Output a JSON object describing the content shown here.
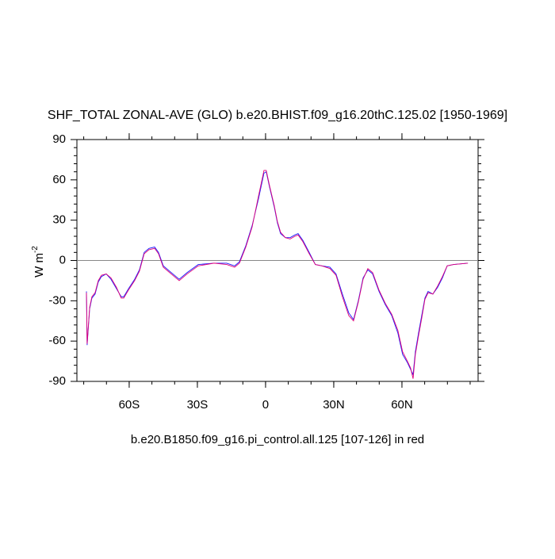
{
  "chart_data": {
    "type": "line",
    "title": "SHF_TOTAL ZONAL-AVE (GLO) b.e20.BHIST.f09_g16.20thC.125.02 [1950-1969]",
    "y_label": "W m",
    "y_label_exponent": "-2",
    "footnote": "b.e20.B1850.f09_g16.pi_control.all.125 [107-126] in red",
    "x": [
      -78.8,
      -78.5,
      -77.4,
      -76.4,
      -75.0,
      -73.6,
      -72.2,
      -70.1,
      -68.0,
      -65.6,
      -63.5,
      -62.4,
      -60.3,
      -57.6,
      -55.5,
      -53.4,
      -51.3,
      -48.8,
      -47.1,
      -45.0,
      -42.2,
      -38.0,
      -34.5,
      -29.6,
      -22.7,
      -17.1,
      -13.6,
      -11.5,
      -8.7,
      -5.9,
      -3.1,
      -0.7,
      0.3,
      1.7,
      3.8,
      5.2,
      6.6,
      8.7,
      10.8,
      12.9,
      14.3,
      16.4,
      19.2,
      21.9,
      24.8,
      28.3,
      31.0,
      33.8,
      36.6,
      38.7,
      40.8,
      42.9,
      45.0,
      47.1,
      49.9,
      52.7,
      55.5,
      58.2,
      60.3,
      62.4,
      63.8,
      64.9,
      65.9,
      67.3,
      68.7,
      70.1,
      71.5,
      73.6,
      75.7,
      77.8,
      79.9,
      82.7,
      89.0
    ],
    "series": [
      {
        "name": "b.e20.BHIST.f09_g16.20thC.125.02",
        "color": "#1a1aff",
        "values": [
          -23,
          -63,
          -36,
          -28,
          -25,
          -16,
          -12,
          -10,
          -14,
          -21,
          -27,
          -27,
          -21,
          -14,
          -7,
          6,
          9,
          10,
          6,
          -4,
          -8,
          -14,
          -9,
          -3,
          -2,
          -2,
          -4,
          -1,
          11,
          26,
          46,
          65,
          66,
          55,
          40,
          28,
          20,
          17,
          17,
          19,
          20,
          15,
          6,
          -3,
          -4,
          -5,
          -10,
          -25,
          -39,
          -44,
          -30,
          -13,
          -7,
          -10,
          -23,
          -33,
          -41,
          -54,
          -70,
          -76,
          -81,
          -85,
          -68,
          -54,
          -41,
          -28,
          -23,
          -25,
          -20,
          -13,
          -4,
          -3,
          -2
        ]
      },
      {
        "name": "b.e20.B1850.f09_g16.pi_control.all.125",
        "color": "#e0007a",
        "values": [
          -24,
          -62,
          -35,
          -27,
          -24,
          -15,
          -11,
          -10,
          -13,
          -20,
          -28,
          -28,
          -22,
          -15,
          -8,
          5,
          8,
          9,
          5,
          -5,
          -9,
          -15,
          -10,
          -4,
          -2,
          -3,
          -5,
          -2,
          10,
          25,
          48,
          67,
          67,
          56,
          41,
          29,
          21,
          17,
          16,
          18,
          19,
          14,
          5,
          -3,
          -4,
          -6,
          -11,
          -27,
          -41,
          -45,
          -31,
          -14,
          -6,
          -9,
          -22,
          -32,
          -40,
          -52,
          -68,
          -75,
          -80,
          -88,
          -70,
          -56,
          -43,
          -29,
          -24,
          -25,
          -19,
          -12,
          -4,
          -3,
          -2
        ]
      }
    ],
    "xlim": [
      -83,
      93.5
    ],
    "xticks": [
      {
        "value": -60,
        "label": "60S"
      },
      {
        "value": -30,
        "label": "30S"
      },
      0,
      {
        "value": 30,
        "label": "30N"
      },
      {
        "value": 60,
        "label": "60N"
      }
    ],
    "ylim": [
      -90,
      90
    ],
    "yticks": [
      -90,
      -60,
      -30,
      0,
      30,
      60,
      90
    ],
    "hline": 0,
    "hline_color": "#888888"
  }
}
